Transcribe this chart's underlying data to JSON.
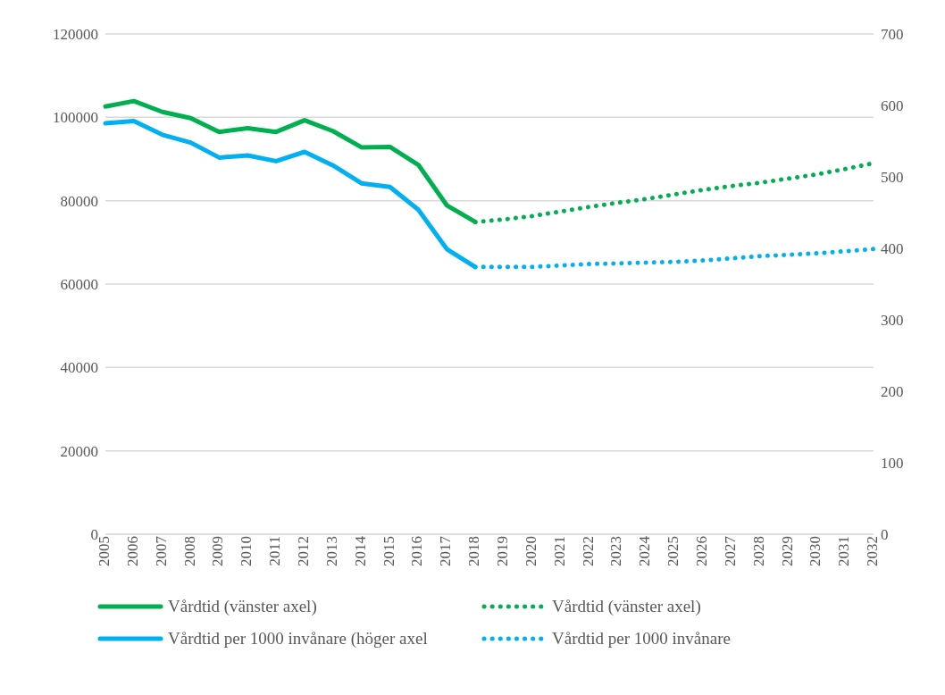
{
  "chart_data": {
    "type": "line",
    "categories": [
      "2005",
      "2006",
      "2007",
      "2008",
      "2009",
      "2010",
      "2011",
      "2012",
      "2013",
      "2014",
      "2015",
      "2016",
      "2017",
      "2018",
      "2019",
      "2020",
      "2021",
      "2022",
      "2023",
      "2024",
      "2025",
      "2026",
      "2027",
      "2028",
      "2029",
      "2030",
      "2031",
      "2032"
    ],
    "series": [
      {
        "name": "Vårdtid (vänster axel)",
        "color": "#00b050",
        "line_style": "solid",
        "values": [
          102600,
          103900,
          101300,
          99800,
          96500,
          97400,
          96500,
          99300,
          96700,
          92800,
          92900,
          88600,
          78900,
          74900,
          null,
          null,
          null,
          null,
          null,
          null,
          null,
          null,
          null,
          null,
          null,
          null,
          null,
          null
        ]
      },
      {
        "name": "Vårdtid (vänster axel)",
        "color": "#00b050",
        "line_style": "dotted",
        "values": [
          null,
          null,
          null,
          null,
          null,
          null,
          null,
          null,
          null,
          null,
          null,
          null,
          null,
          74900,
          75500,
          76300,
          77400,
          78500,
          79500,
          80400,
          81500,
          82600,
          83500,
          84300,
          85300,
          86300,
          87600,
          89000
        ]
      },
      {
        "name": "Vårdtid per 1000 invånare (höger axel",
        "color": "#00b0f0",
        "line_style": "solid",
        "axis": "y2",
        "values": [
          575,
          578,
          559,
          548,
          527,
          530,
          522,
          535,
          516,
          491,
          486,
          454,
          399,
          374,
          null,
          null,
          null,
          null,
          null,
          null,
          null,
          null,
          null,
          null,
          null,
          null,
          null,
          null
        ]
      },
      {
        "name": "Vårdtid per 1000 invånare",
        "color": "#00b0f0",
        "line_style": "dotted",
        "axis": "y2",
        "values": [
          null,
          null,
          null,
          null,
          null,
          null,
          null,
          null,
          null,
          null,
          null,
          null,
          null,
          374,
          374,
          374,
          376,
          378,
          379,
          380,
          381,
          383,
          386,
          389,
          391,
          393,
          396,
          399
        ]
      }
    ],
    "ylim": [
      0,
      120000
    ],
    "yticks": [
      0,
      20000,
      40000,
      60000,
      80000,
      100000,
      120000
    ],
    "y2lim": [
      0,
      700
    ],
    "y2ticks": [
      0,
      100,
      200,
      300,
      400,
      500,
      600,
      700
    ],
    "grid": "y",
    "legend": "bottom",
    "marker": "none"
  }
}
